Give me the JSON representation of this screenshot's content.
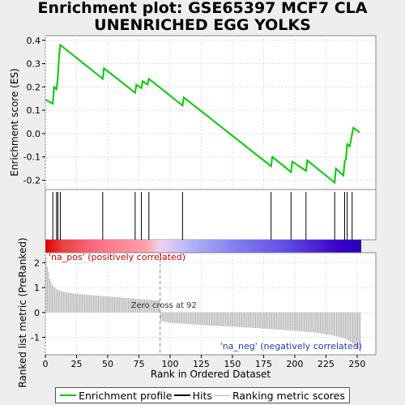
{
  "title_line1": "Enrichment plot: GSE65397 MCF7 CLA",
  "title_line2": "UNENRICHED EGG YOLKS",
  "legend": {
    "enrichment_label": "Enrichment profile",
    "hits_label": "Hits",
    "ranking_label": "Ranking metric scores"
  },
  "colors": {
    "enrichment_line": "#00cc00",
    "hits": "#000000",
    "ranking_bars": "#b4b4b4",
    "panel_bg": "#ffffff",
    "grid": "#dddddd"
  },
  "chart_data": [
    {
      "type": "line",
      "name": "enrichment-profile",
      "ylabel": "Enrichment score (ES)",
      "ylim": [
        -0.24,
        0.42
      ],
      "yticks": [
        -0.2,
        -0.1,
        0.0,
        0.1,
        0.2,
        0.3,
        0.4
      ],
      "ytick_labels": [
        "-0.2",
        "-0.1",
        "0.0",
        "0.1",
        "0.2",
        "0.3",
        "0.4"
      ],
      "x": [
        0,
        6,
        7,
        9,
        10,
        11,
        12,
        46,
        47,
        72,
        73,
        77,
        78,
        82,
        83,
        110,
        111,
        181,
        182,
        197,
        198,
        209,
        210,
        232,
        233,
        239,
        240,
        241,
        242,
        244,
        245,
        246,
        247,
        252
      ],
      "y": [
        0.145,
        0.128,
        0.2,
        0.19,
        0.24,
        0.33,
        0.38,
        0.235,
        0.28,
        0.175,
        0.21,
        0.195,
        0.225,
        0.21,
        0.235,
        0.12,
        0.155,
        -0.14,
        -0.1,
        -0.165,
        -0.12,
        -0.16,
        -0.115,
        -0.21,
        -0.15,
        -0.18,
        -0.12,
        -0.11,
        -0.045,
        -0.055,
        -0.03,
        0.0,
        0.025,
        0.005
      ]
    },
    {
      "type": "scatter",
      "name": "hits",
      "x": [
        6,
        9,
        10,
        12,
        46,
        72,
        77,
        83,
        110,
        181,
        197,
        209,
        232,
        240,
        242,
        246
      ]
    },
    {
      "type": "bar",
      "name": "ranking-metric",
      "xlabel": "Rank in Ordered Dataset",
      "ylabel": "Ranked list metric (PreRanked)",
      "xlim": [
        0,
        265
      ],
      "xticks": [
        0,
        25,
        50,
        75,
        100,
        125,
        150,
        175,
        200,
        225,
        250
      ],
      "xtick_labels": [
        "0",
        "25",
        "50",
        "75",
        "100",
        "125",
        "150",
        "175",
        "200",
        "225",
        "250"
      ],
      "ylim": [
        -1.7,
        2.4
      ],
      "yticks": [
        -1,
        0,
        1,
        2
      ],
      "ytick_labels": [
        "-1",
        "0",
        "1",
        "2"
      ],
      "n": 253,
      "zero_cross": 92,
      "zero_cross_label": "Zero cross at 92",
      "pos_label": "'na_pos' (positively correlated)",
      "neg_label": "'na_neg' (negatively correlated)",
      "anchors_x": [
        0,
        1,
        2,
        3,
        5,
        8,
        12,
        20,
        40,
        60,
        80,
        91,
        92,
        100,
        130,
        160,
        190,
        215,
        230,
        240,
        245,
        250,
        252
      ],
      "anchors_y": [
        2.2,
        1.85,
        1.65,
        1.35,
        1.1,
        0.95,
        0.85,
        0.78,
        0.68,
        0.6,
        0.52,
        0.48,
        -0.35,
        -0.42,
        -0.52,
        -0.6,
        -0.7,
        -0.8,
        -0.92,
        -1.05,
        -1.2,
        -1.45,
        -1.6
      ]
    }
  ]
}
